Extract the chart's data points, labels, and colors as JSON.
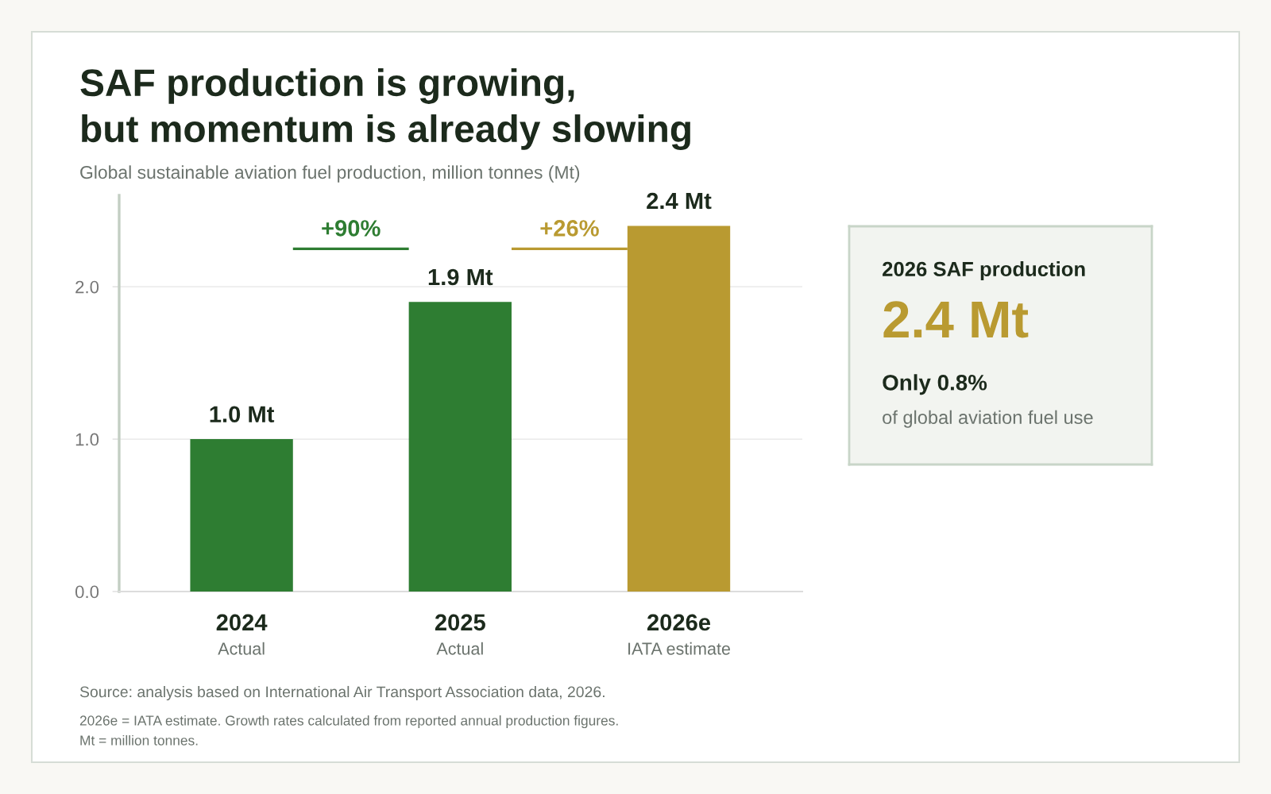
{
  "chart_data": [
    {
      "type": "bar",
      "title": "SAF production is growing,\nbut momentum is already slowing",
      "subtitle": "Global sustainable aviation fuel production, million tonnes (Mt)",
      "categories": [
        "2024\nActual",
        "2025\nActual",
        "2026e\nIATA estimate"
      ],
      "values": [
        1.0,
        1.9,
        2.4
      ],
      "colors": [
        "#2e7d32",
        "#2e7d32",
        "#b99a31"
      ],
      "value_labels": [
        "1.0 Mt",
        "1.9 Mt",
        "2.4 Mt"
      ],
      "ylim": [
        0,
        2.6
      ],
      "yticks": [
        {
          "value": 0,
          "label": "0.0"
        },
        {
          "value": 1,
          "label": "1.0"
        },
        {
          "value": 2,
          "label": "2.0"
        }
      ],
      "grid": "y",
      "annotations": [
        "+90%",
        "+26%",
        "Source: analysis based on International Air Transport Association data, 2026.",
        "2026e = IATA estimate. Growth rates calculated from reported annual production figures.",
        "Mt = million tonnes."
      ]
    },
    {
      "type": "other",
      "title": "2026 SAF production",
      "color": "#b99a31",
      "annotations": [
        "2.4 Mt",
        "Only 0.8%",
        "of global aviation fuel use"
      ]
    }
  ]
}
